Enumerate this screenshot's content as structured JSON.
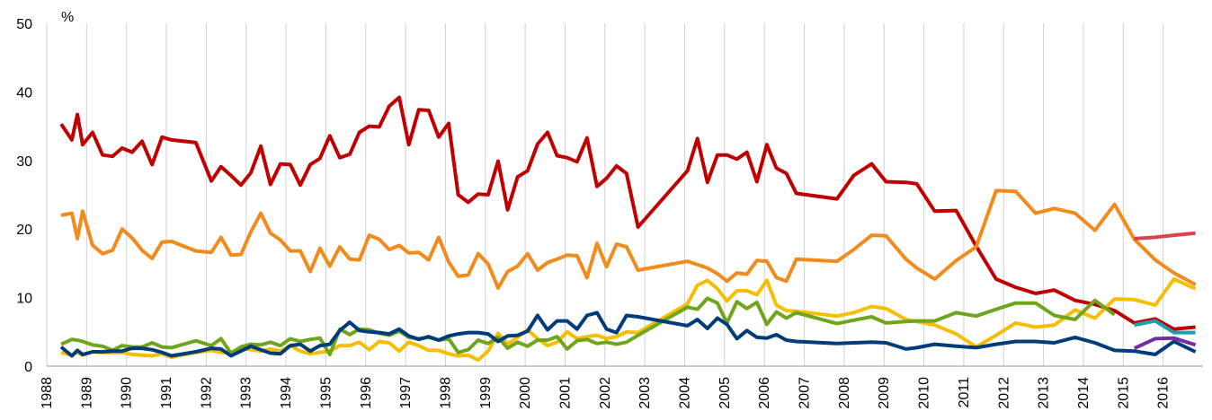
{
  "chart_data": {
    "type": "line",
    "y_label": "%",
    "xlim": [
      1988,
      2017
    ],
    "ylim": [
      0,
      50
    ],
    "xticks": [
      1988,
      1989,
      1990,
      1991,
      1992,
      1993,
      1994,
      1995,
      1996,
      1997,
      1998,
      1999,
      2000,
      2001,
      2002,
      2003,
      2004,
      2005,
      2006,
      2007,
      2008,
      2009,
      2010,
      2011,
      2012,
      2013,
      2014,
      2015,
      2016
    ],
    "yticks": [
      0,
      10,
      20,
      30,
      40,
      50
    ],
    "grid": true,
    "x": [
      1988.36,
      1988.63,
      1988.77,
      1988.9,
      1989.15,
      1989.4,
      1989.65,
      1989.89,
      1990.14,
      1990.39,
      1990.64,
      1990.89,
      1991.13,
      1991.74,
      1992.13,
      1992.37,
      1992.62,
      1992.87,
      1993.12,
      1993.37,
      1993.61,
      1993.86,
      1994.11,
      1994.36,
      1994.61,
      1994.85,
      1995.1,
      1995.35,
      1995.6,
      1995.84,
      1996.09,
      1996.34,
      1996.59,
      1996.84,
      1997.08,
      1997.33,
      1997.58,
      1997.83,
      1998.08,
      1998.32,
      1998.57,
      1998.82,
      1999.07,
      1999.32,
      1999.56,
      1999.81,
      2000.06,
      2000.31,
      2000.56,
      2000.8,
      2001.05,
      2001.3,
      2001.55,
      2001.8,
      2002.04,
      2002.29,
      2002.54,
      2002.83,
      2004.07,
      2004.32,
      2004.57,
      2004.82,
      2005.06,
      2005.31,
      2005.56,
      2005.81,
      2006.06,
      2006.3,
      2006.55,
      2006.8,
      2007.82,
      2008.24,
      2008.69,
      2009.05,
      2009.55,
      2009.82,
      2010.27,
      2010.81,
      2011.31,
      2011.81,
      2012.3,
      2012.8,
      2013.27,
      2013.79,
      2014.29,
      2014.78,
      2015.28,
      2015.8,
      2016.27,
      2016.81
    ],
    "series": [
      {
        "color": "#c00000",
        "values": [
          35.3,
          33,
          36.7,
          32.3,
          34.1,
          30.8,
          30.6,
          31.8,
          31.2,
          32.8,
          29.4,
          33.4,
          33,
          32.6,
          27,
          29.1,
          27.8,
          26.4,
          28.2,
          32.1,
          26.5,
          29.5,
          29.4,
          26.4,
          29.4,
          30.3,
          33.6,
          30.4,
          30.9,
          34.1,
          35,
          34.9,
          37.9,
          39.2,
          32.3,
          37.4,
          37.3,
          33.4,
          35.4,
          25,
          23.9,
          25.1,
          25,
          29.9,
          22.8,
          27.6,
          28.5,
          32.4,
          34.1,
          30.7,
          30.4,
          29.8,
          33.3,
          26.2,
          27.4,
          29.2,
          28.1,
          20.3,
          28.5,
          33.2,
          26.8,
          30.8,
          30.8,
          30.2,
          31.2,
          26.9,
          32.3,
          28.9,
          28.1,
          25.2,
          24.4,
          27.8,
          29.5,
          26.9,
          26.8,
          26.6,
          22.6,
          22.7,
          17.5,
          12.7,
          11.5,
          10.6,
          11.1,
          9.6,
          9,
          8.1,
          6.3,
          6.9,
          5.4,
          5.7
        ]
      },
      {
        "color": "#f28a1c",
        "values": [
          22,
          22.3,
          18.6,
          22.6,
          17.6,
          16.4,
          16.9,
          20,
          18.7,
          16.9,
          15.7,
          18.1,
          18.2,
          16.8,
          16.6,
          18.8,
          16.2,
          16.3,
          19.6,
          22.3,
          19.4,
          18.4,
          16.8,
          16.8,
          13.8,
          17.2,
          14.6,
          17.4,
          15.6,
          15.5,
          19.1,
          18.5,
          17,
          17.6,
          16.5,
          16.6,
          15.5,
          18.8,
          15.2,
          13.1,
          13.3,
          16.4,
          14.9,
          11.4,
          13.8,
          14.6,
          16.4,
          14,
          15.1,
          15.6,
          16.2,
          16.1,
          12.9,
          17.9,
          14.5,
          17.8,
          17.4,
          14,
          15.3,
          14.8,
          14.3,
          13.5,
          12.4,
          13.6,
          13.4,
          15.4,
          15.3,
          12.9,
          12.4,
          15.6,
          15.3,
          17,
          19.1,
          19,
          15.6,
          14.3,
          12.7,
          15.4,
          17.4,
          25.6,
          25.5,
          22.3,
          23,
          22.3,
          19.8,
          23.6,
          18.5,
          15.5,
          13.6,
          11.9
        ]
      },
      {
        "color": "#f5be00",
        "values": [
          2,
          1.6,
          2,
          1.6,
          2.1,
          2,
          2,
          2,
          1.7,
          1.6,
          1.5,
          1.8,
          1.3,
          2,
          2.3,
          2,
          2,
          2.6,
          2.4,
          2.2,
          2.5,
          2.2,
          3,
          2.2,
          1.8,
          2,
          2.2,
          3,
          3,
          3.5,
          2.4,
          3.6,
          3.4,
          2.2,
          3.5,
          3,
          2.3,
          2.3,
          1.8,
          1.5,
          1.6,
          0.9,
          2.2,
          4.8,
          3.2,
          4.2,
          5.3,
          4,
          3,
          3.5,
          5,
          4,
          4.3,
          4.5,
          4,
          4.3,
          5,
          4.9,
          9.1,
          11.8,
          12.5,
          11.3,
          9.5,
          11,
          11,
          10.4,
          12.5,
          8.9,
          8.1,
          8,
          7.3,
          7.8,
          8.7,
          8.4,
          6.8,
          6.5,
          6,
          4.7,
          2.8,
          4.5,
          6.3,
          5.7,
          6,
          8.2,
          7,
          9.8,
          9.7,
          8.9,
          12.7,
          11.3
        ]
      },
      {
        "color": "#6fa51c",
        "values": [
          3.2,
          3.9,
          3.8,
          3.6,
          3.1,
          2.9,
          2.3,
          3,
          2.8,
          2.8,
          3.4,
          2.8,
          2.7,
          3.7,
          3,
          4,
          1.9,
          2.8,
          3.2,
          3.1,
          3.5,
          3,
          4,
          3.6,
          3.9,
          4.1,
          1.7,
          5.4,
          4.6,
          5.4,
          5.3,
          4.8,
          4.5,
          5.1,
          4.2,
          4,
          4.2,
          3.8,
          4,
          2,
          2.4,
          3.8,
          3.3,
          4.2,
          2.6,
          3.5,
          2.9,
          3.8,
          3.8,
          4.3,
          2.5,
          3.7,
          3.9,
          3.3,
          3.5,
          3.2,
          3.5,
          4.5,
          8.6,
          8.3,
          9.9,
          9.2,
          6.3,
          9.4,
          8.4,
          9.3,
          6.1,
          7.9,
          7,
          7.8,
          6.2,
          6.7,
          7.2,
          6.3,
          6.5,
          6.6,
          6.6,
          7.8,
          7.3,
          8.3,
          9.2,
          9.2,
          7.4,
          6.8,
          9.6,
          7.5,
          null,
          null,
          null,
          null
        ]
      },
      {
        "color": "#003b7a",
        "values": [
          2.8,
          1.5,
          2.3,
          1.7,
          2.1,
          2.1,
          2.2,
          2.2,
          2.6,
          2.6,
          2.4,
          2,
          1.5,
          2.1,
          2.6,
          2.5,
          1.5,
          2.2,
          2.9,
          2.4,
          1.9,
          1.8,
          3,
          3.2,
          2.2,
          3,
          3.2,
          5.2,
          6.4,
          5.2,
          5,
          4.9,
          4.7,
          5.4,
          4.4,
          3.9,
          4.3,
          3.8,
          4.4,
          4.7,
          4.9,
          4.9,
          4.7,
          3.6,
          4.4,
          4.5,
          5.1,
          7.4,
          5.3,
          6.6,
          6.6,
          5.4,
          7.4,
          7.8,
          5.4,
          4.9,
          7.4,
          7.2,
          5.9,
          6.8,
          5.5,
          7,
          6.1,
          4,
          5.2,
          4.2,
          4.1,
          4.6,
          3.8,
          3.6,
          3.3,
          3.4,
          3.5,
          3.4,
          2.5,
          2.7,
          3.2,
          2.9,
          2.7,
          3.2,
          3.6,
          3.6,
          3.4,
          4.2,
          3.4,
          2.3,
          2.2,
          1.7,
          3.6,
          2.1
        ]
      },
      {
        "color": "#1b9fae",
        "x": [
          2015.28,
          2015.8,
          2016.27,
          2016.81
        ],
        "values": [
          6,
          6.6,
          4.9,
          4.9
        ]
      },
      {
        "color": "#7030a0",
        "x": [
          2015.28,
          2015.8,
          2016.27,
          2016.81
        ],
        "values": [
          2.6,
          4,
          4.1,
          3.1
        ]
      },
      {
        "color": "#d9434c",
        "x": [
          2015.28,
          2015.8,
          2016.27,
          2016.81
        ],
        "values": [
          18.6,
          18.8,
          19.1,
          19.4
        ]
      }
    ]
  }
}
